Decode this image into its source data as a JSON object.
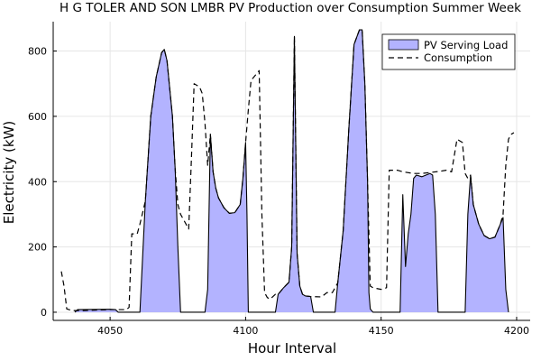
{
  "chart_data": {
    "type": "area",
    "title": "H G TOLER AND SON LMBR PV Production over Consumption Summer Week",
    "xlabel": "Hour Interval",
    "ylabel": "Electricity (kW)",
    "xlim": [
      4029,
      4205
    ],
    "ylim": [
      -25,
      890
    ],
    "xticks": [
      4050,
      4100,
      4150,
      4200
    ],
    "yticks": [
      0,
      200,
      400,
      600,
      800
    ],
    "grid": true,
    "legend_position": "top-right",
    "series": [
      {
        "name": "PV Serving Load",
        "style": "filled-area",
        "color": "#b3b3ff",
        "edge_color": "#000000",
        "points": [
          [
            4037,
            0
          ],
          [
            4038,
            8
          ],
          [
            4050,
            9
          ],
          [
            4052,
            8
          ],
          [
            4053,
            0
          ],
          [
            4061,
            0
          ],
          [
            4063,
            340
          ],
          [
            4065,
            600
          ],
          [
            4067,
            720
          ],
          [
            4069,
            795
          ],
          [
            4070,
            805
          ],
          [
            4071,
            770
          ],
          [
            4073,
            600
          ],
          [
            4074,
            440
          ],
          [
            4075,
            200
          ],
          [
            4076,
            0
          ],
          [
            4085,
            0
          ],
          [
            4086,
            70
          ],
          [
            4087,
            545
          ],
          [
            4088,
            430
          ],
          [
            4089,
            380
          ],
          [
            4090,
            350
          ],
          [
            4092,
            320
          ],
          [
            4094,
            303
          ],
          [
            4096,
            305
          ],
          [
            4098,
            330
          ],
          [
            4099,
            410
          ],
          [
            4100,
            520
          ],
          [
            4100.5,
            300
          ],
          [
            4101,
            0
          ],
          [
            4111,
            0
          ],
          [
            4112,
            55
          ],
          [
            4114,
            75
          ],
          [
            4116,
            92
          ],
          [
            4117,
            200
          ],
          [
            4118,
            845
          ],
          [
            4119,
            180
          ],
          [
            4120,
            80
          ],
          [
            4121,
            55
          ],
          [
            4122,
            50
          ],
          [
            4124,
            48
          ],
          [
            4125,
            0
          ],
          [
            4133,
            0
          ],
          [
            4134,
            90
          ],
          [
            4136,
            250
          ],
          [
            4138,
            550
          ],
          [
            4140,
            820
          ],
          [
            4142,
            865
          ],
          [
            4143,
            865
          ],
          [
            4144,
            700
          ],
          [
            4145,
            400
          ],
          [
            4145.5,
            60
          ],
          [
            4146,
            10
          ],
          [
            4147,
            0
          ],
          [
            4157,
            0
          ],
          [
            4158,
            360
          ],
          [
            4159,
            140
          ],
          [
            4160,
            240
          ],
          [
            4161,
            300
          ],
          [
            4162,
            410
          ],
          [
            4163,
            420
          ],
          [
            4165,
            415
          ],
          [
            4168,
            425
          ],
          [
            4169,
            420
          ],
          [
            4170,
            300
          ],
          [
            4171,
            0
          ],
          [
            4181,
            0
          ],
          [
            4182,
            300
          ],
          [
            4183,
            420
          ],
          [
            4184,
            330
          ],
          [
            4186,
            270
          ],
          [
            4188,
            235
          ],
          [
            4190,
            225
          ],
          [
            4192,
            230
          ],
          [
            4194,
            270
          ],
          [
            4195,
            290
          ],
          [
            4196,
            70
          ],
          [
            4197,
            0
          ]
        ]
      },
      {
        "name": "Consumption",
        "style": "dashed-line",
        "color": "#000000",
        "points": [
          [
            4032,
            125
          ],
          [
            4033,
            80
          ],
          [
            4034,
            10
          ],
          [
            4036,
            5
          ],
          [
            4040,
            5
          ],
          [
            4050,
            8
          ],
          [
            4056,
            8
          ],
          [
            4057,
            15
          ],
          [
            4058,
            240
          ],
          [
            4060,
            240
          ],
          [
            4061,
            270
          ],
          [
            4063,
            340
          ],
          [
            4065,
            600
          ],
          [
            4067,
            720
          ],
          [
            4069,
            795
          ],
          [
            4070,
            805
          ],
          [
            4071,
            770
          ],
          [
            4073,
            600
          ],
          [
            4074,
            440
          ],
          [
            4075,
            330
          ],
          [
            4076,
            300
          ],
          [
            4078,
            270
          ],
          [
            4079,
            255
          ],
          [
            4080,
            470
          ],
          [
            4081,
            700
          ],
          [
            4083,
            690
          ],
          [
            4084,
            670
          ],
          [
            4085,
            580
          ],
          [
            4086,
            450
          ],
          [
            4087,
            545
          ],
          [
            4088,
            430
          ],
          [
            4089,
            380
          ],
          [
            4090,
            350
          ],
          [
            4092,
            320
          ],
          [
            4094,
            303
          ],
          [
            4096,
            305
          ],
          [
            4098,
            330
          ],
          [
            4099,
            410
          ],
          [
            4100,
            520
          ],
          [
            4101,
            620
          ],
          [
            4102,
            710
          ],
          [
            4104,
            730
          ],
          [
            4105,
            740
          ],
          [
            4106,
            300
          ],
          [
            4107,
            60
          ],
          [
            4108,
            45
          ],
          [
            4109,
            40
          ],
          [
            4111,
            55
          ],
          [
            4112,
            55
          ],
          [
            4114,
            75
          ],
          [
            4116,
            92
          ],
          [
            4117,
            200
          ],
          [
            4118,
            845
          ],
          [
            4119,
            180
          ],
          [
            4120,
            80
          ],
          [
            4121,
            55
          ],
          [
            4122,
            50
          ],
          [
            4124,
            48
          ],
          [
            4128,
            47
          ],
          [
            4130,
            60
          ],
          [
            4132,
            60
          ],
          [
            4134,
            90
          ],
          [
            4136,
            250
          ],
          [
            4138,
            550
          ],
          [
            4140,
            820
          ],
          [
            4142,
            865
          ],
          [
            4143,
            865
          ],
          [
            4144,
            700
          ],
          [
            4145,
            400
          ],
          [
            4146,
            80
          ],
          [
            4147,
            75
          ],
          [
            4150,
            70
          ],
          [
            4152,
            75
          ],
          [
            4153,
            435
          ],
          [
            4156,
            435
          ],
          [
            4158,
            430
          ],
          [
            4162,
            425
          ],
          [
            4165,
            425
          ],
          [
            4168,
            428
          ],
          [
            4172,
            432
          ],
          [
            4174,
            435
          ],
          [
            4176,
            430
          ],
          [
            4178,
            530
          ],
          [
            4180,
            520
          ],
          [
            4181,
            425
          ],
          [
            4182,
            410
          ],
          [
            4183,
            420
          ],
          [
            4184,
            330
          ],
          [
            4186,
            270
          ],
          [
            4188,
            235
          ],
          [
            4190,
            225
          ],
          [
            4192,
            230
          ],
          [
            4194,
            270
          ],
          [
            4195,
            300
          ],
          [
            4196,
            450
          ],
          [
            4197,
            530
          ],
          [
            4198,
            545
          ],
          [
            4199,
            550
          ]
        ]
      }
    ]
  }
}
